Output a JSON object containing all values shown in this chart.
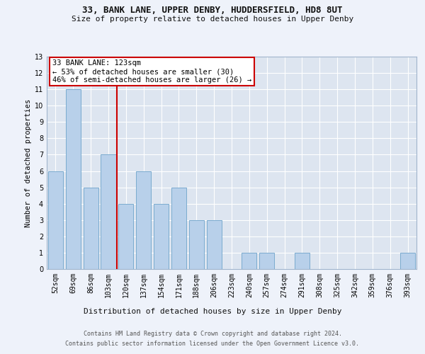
{
  "title1": "33, BANK LANE, UPPER DENBY, HUDDERSFIELD, HD8 8UT",
  "title2": "Size of property relative to detached houses in Upper Denby",
  "xlabel": "Distribution of detached houses by size in Upper Denby",
  "ylabel": "Number of detached properties",
  "categories": [
    "52sqm",
    "69sqm",
    "86sqm",
    "103sqm",
    "120sqm",
    "137sqm",
    "154sqm",
    "171sqm",
    "188sqm",
    "206sqm",
    "223sqm",
    "240sqm",
    "257sqm",
    "274sqm",
    "291sqm",
    "308sqm",
    "325sqm",
    "342sqm",
    "359sqm",
    "376sqm",
    "393sqm"
  ],
  "values": [
    6,
    11,
    5,
    7,
    4,
    6,
    4,
    5,
    3,
    3,
    0,
    1,
    1,
    0,
    1,
    0,
    0,
    0,
    0,
    0,
    1
  ],
  "bar_color": "#b8d0ea",
  "bar_edge_color": "#7aabcf",
  "vline_color": "#cc0000",
  "annotation_text": "33 BANK LANE: 123sqm\n← 53% of detached houses are smaller (30)\n46% of semi-detached houses are larger (26) →",
  "annotation_box_color": "#ffffff",
  "annotation_box_edge_color": "#cc0000",
  "ylim": [
    0,
    13
  ],
  "yticks": [
    0,
    1,
    2,
    3,
    4,
    5,
    6,
    7,
    8,
    9,
    10,
    11,
    12,
    13
  ],
  "footer1": "Contains HM Land Registry data © Crown copyright and database right 2024.",
  "footer2": "Contains public sector information licensed under the Open Government Licence v3.0.",
  "bg_color": "#eef2fa",
  "plot_bg_color": "#dde5f0",
  "grid_color": "#ffffff",
  "title_fontsize": 9,
  "subtitle_fontsize": 8,
  "xlabel_fontsize": 8,
  "ylabel_fontsize": 7.5,
  "tick_fontsize": 7,
  "footer_fontsize": 6,
  "annotation_fontsize": 7.5
}
